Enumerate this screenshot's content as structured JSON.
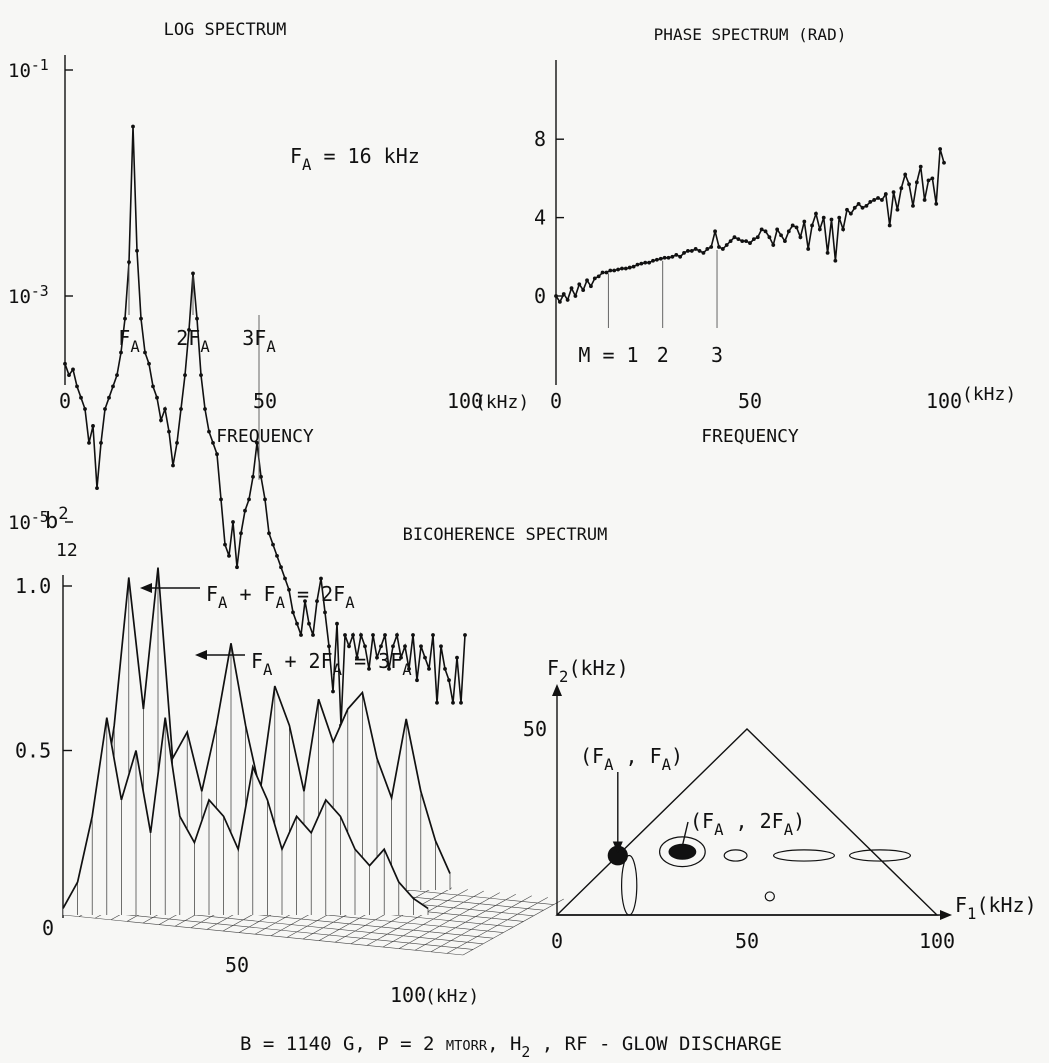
{
  "chart_data": [
    {
      "type": "line",
      "title": "LOG SPECTRUM",
      "xlabel": "FREQUENCY",
      "x_unit": "(kHz)",
      "y_scale": "log",
      "xlim": [
        0,
        100
      ],
      "ylim_exponent": [
        -7,
        -1
      ],
      "x_ticks": [
        "0",
        "50",
        "100"
      ],
      "y_ticks": [
        {
          "base": "10",
          "exp": "-1"
        },
        {
          "base": "10",
          "exp": "-3"
        },
        {
          "base": "10",
          "exp": "-5"
        }
      ],
      "annotation": {
        "text": "F",
        "sub": "A",
        "rest": " = 16 kHz"
      },
      "harmonic_labels": [
        {
          "x": 16,
          "pre": "F",
          "sub": "A"
        },
        {
          "x": 32,
          "pre": "2F",
          "sub": "A"
        },
        {
          "x": 48.5,
          "pre": "3F",
          "sub": "A"
        }
      ],
      "series": [
        {
          "x": [
            0,
            1,
            2,
            3,
            4,
            5,
            6,
            7,
            8,
            9,
            10,
            11,
            12,
            13,
            14,
            15,
            16,
            17,
            18,
            19,
            20,
            21,
            22,
            23,
            24,
            25,
            26,
            27,
            28,
            29,
            30,
            31,
            32,
            33,
            34,
            35,
            36,
            37,
            38,
            39,
            40,
            41,
            42,
            43,
            44,
            45,
            46,
            47,
            48,
            49,
            50,
            51,
            52,
            53,
            54,
            55,
            56,
            57,
            58,
            59,
            60,
            61,
            62,
            63,
            64,
            65,
            66,
            67,
            68,
            69,
            70,
            71,
            72,
            73,
            74,
            75,
            76,
            77,
            78,
            79,
            80,
            81,
            82,
            83,
            84,
            85,
            86,
            87,
            88,
            89,
            90,
            91,
            92,
            93,
            94,
            95,
            96,
            97,
            98,
            99,
            100
          ],
          "y_log10": [
            -3.6,
            -3.7,
            -3.65,
            -3.8,
            -3.9,
            -4.0,
            -4.3,
            -4.15,
            -4.7,
            -4.3,
            -4.0,
            -3.9,
            -3.8,
            -3.7,
            -3.5,
            -3.2,
            -2.7,
            -1.5,
            -2.6,
            -3.2,
            -3.5,
            -3.6,
            -3.8,
            -3.9,
            -4.1,
            -4.0,
            -4.2,
            -4.5,
            -4.3,
            -4.0,
            -3.7,
            -3.3,
            -2.8,
            -3.2,
            -3.7,
            -4.0,
            -4.2,
            -4.3,
            -4.4,
            -4.8,
            -5.2,
            -5.3,
            -5.0,
            -5.4,
            -5.1,
            -4.9,
            -4.8,
            -4.6,
            -4.3,
            -4.6,
            -4.8,
            -5.1,
            -5.2,
            -5.3,
            -5.4,
            -5.5,
            -5.6,
            -5.8,
            -5.9,
            -6.0,
            -5.7,
            -5.9,
            -6.0,
            -5.7,
            -5.5,
            -5.8,
            -6.1,
            -6.5,
            -5.9,
            -6.8,
            -6.0,
            -6.1,
            -6.0,
            -6.2,
            -6.0,
            -6.1,
            -6.3,
            -6.0,
            -6.2,
            -6.1,
            -6.0,
            -6.3,
            -6.1,
            -6.0,
            -6.2,
            -6.1,
            -6.3,
            -6.0,
            -6.4,
            -6.1,
            -6.2,
            -6.3,
            -6.0,
            -6.6,
            -6.1,
            -6.3,
            -6.4,
            -6.6,
            -6.2,
            -6.6,
            -6.0
          ]
        }
      ]
    },
    {
      "type": "line",
      "title": "PHASE SPECTRUM (RAD)",
      "xlabel": "FREQUENCY",
      "x_unit": "(kHz)",
      "xlim": [
        0,
        100
      ],
      "ylim": [
        -1.5,
        11
      ],
      "x_ticks": [
        "0",
        "50",
        "100"
      ],
      "y_ticks": [
        "0",
        "4",
        "8"
      ],
      "mode_labels": [
        {
          "x": 13.5,
          "text": "M = 1"
        },
        {
          "x": 27.5,
          "text": "2"
        },
        {
          "x": 41.5,
          "text": "3"
        }
      ],
      "series": [
        {
          "x": [
            0,
            1,
            2,
            3,
            4,
            5,
            6,
            7,
            8,
            9,
            10,
            11,
            12,
            13,
            14,
            15,
            16,
            17,
            18,
            19,
            20,
            21,
            22,
            23,
            24,
            25,
            26,
            27,
            28,
            29,
            30,
            31,
            32,
            33,
            34,
            35,
            36,
            37,
            38,
            39,
            40,
            41,
            42,
            43,
            44,
            45,
            46,
            47,
            48,
            49,
            50,
            51,
            52,
            53,
            54,
            55,
            56,
            57,
            58,
            59,
            60,
            61,
            62,
            63,
            64,
            65,
            66,
            67,
            68,
            69,
            70,
            71,
            72,
            73,
            74,
            75,
            76,
            77,
            78,
            79,
            80,
            81,
            82,
            83,
            84,
            85,
            86,
            87,
            88,
            89,
            90,
            91,
            92,
            93,
            94,
            95,
            96,
            97,
            98,
            99,
            100
          ],
          "y": [
            0.0,
            -0.3,
            0.1,
            -0.2,
            0.4,
            0.0,
            0.6,
            0.3,
            0.8,
            0.5,
            0.9,
            1.0,
            1.2,
            1.2,
            1.3,
            1.3,
            1.35,
            1.4,
            1.4,
            1.45,
            1.5,
            1.6,
            1.65,
            1.7,
            1.7,
            1.8,
            1.85,
            1.9,
            1.95,
            1.95,
            2.0,
            2.1,
            2.0,
            2.2,
            2.3,
            2.3,
            2.4,
            2.3,
            2.2,
            2.4,
            2.5,
            3.3,
            2.5,
            2.4,
            2.6,
            2.8,
            3.0,
            2.9,
            2.8,
            2.8,
            2.7,
            2.9,
            3.0,
            3.4,
            3.3,
            3.0,
            2.6,
            3.4,
            3.1,
            2.8,
            3.3,
            3.6,
            3.5,
            3.0,
            3.8,
            2.4,
            3.6,
            4.2,
            3.4,
            4.0,
            2.2,
            3.9,
            1.8,
            4.0,
            3.4,
            4.4,
            4.2,
            4.5,
            4.7,
            4.5,
            4.6,
            4.8,
            4.9,
            5.0,
            4.9,
            5.2,
            3.6,
            5.3,
            4.4,
            5.5,
            6.2,
            5.7,
            4.6,
            5.8,
            6.6,
            4.9,
            5.9,
            6.0,
            4.7,
            7.5,
            6.8
          ]
        }
      ]
    },
    {
      "type": "area",
      "title": "BICOHERENCE SPECTRUM",
      "ylabel": {
        "base": "b",
        "sup": "2",
        "sub": "12"
      },
      "x_unit": "(kHz)",
      "ylim": [
        0,
        1.0
      ],
      "xlim": [
        0,
        100
      ],
      "x_ticks": [
        "50",
        "100"
      ],
      "y_ticks": [
        "0",
        "0.5",
        "1.0"
      ],
      "annotations": [
        {
          "parts": [
            [
              "F",
              ""
            ],
            [
              "A",
              "sub"
            ],
            [
              " + F",
              ""
            ],
            [
              "A",
              "sub"
            ],
            [
              " = 2F",
              ""
            ],
            [
              "A",
              "sub"
            ]
          ]
        },
        {
          "parts": [
            [
              "F",
              ""
            ],
            [
              "A",
              "sub"
            ],
            [
              " + 2F",
              ""
            ],
            [
              "A",
              "sub"
            ],
            [
              " = 3F",
              ""
            ],
            [
              "A",
              "sub"
            ]
          ]
        }
      ],
      "ridges": [
        {
          "x": [
            0,
            4,
            8,
            12,
            16,
            20,
            24,
            28,
            32,
            36,
            40,
            44,
            48,
            52,
            56,
            60,
            64,
            68,
            72,
            76,
            80,
            84,
            88,
            92,
            96,
            100
          ],
          "y": [
            0.05,
            0.2,
            0.5,
            0.95,
            0.55,
            0.98,
            0.4,
            0.48,
            0.3,
            0.5,
            0.75,
            0.5,
            0.3,
            0.62,
            0.5,
            0.3,
            0.58,
            0.45,
            0.55,
            0.6,
            0.4,
            0.28,
            0.52,
            0.3,
            0.15,
            0.05
          ]
        },
        {
          "x": [
            0,
            4,
            8,
            12,
            16,
            20,
            24,
            28,
            32,
            36,
            40,
            44,
            48,
            52,
            56,
            60,
            64,
            68,
            72,
            76,
            80,
            84,
            88,
            92,
            96,
            100
          ],
          "y": [
            0.02,
            0.1,
            0.3,
            0.6,
            0.35,
            0.5,
            0.25,
            0.6,
            0.3,
            0.22,
            0.35,
            0.3,
            0.2,
            0.45,
            0.35,
            0.2,
            0.3,
            0.25,
            0.35,
            0.3,
            0.2,
            0.15,
            0.2,
            0.1,
            0.05,
            0.02
          ]
        }
      ]
    },
    {
      "type": "contour",
      "x_axis_label": {
        "base": "F",
        "sub": "1",
        "unit": "(kHz)"
      },
      "y_axis_label": {
        "base": "F",
        "sub": "2",
        "unit": "(kHz)"
      },
      "x_ticks": [
        "0",
        "50",
        "100"
      ],
      "y_ticks": [
        "50"
      ],
      "xlim": [
        0,
        105
      ],
      "ylim": [
        0,
        52
      ],
      "domain_triangle": [
        [
          0,
          0
        ],
        [
          50,
          50
        ],
        [
          100,
          0
        ]
      ],
      "labels": [
        {
          "parts": [
            [
              "(F",
              ""
            ],
            [
              "A",
              "sub"
            ],
            [
              "  ,  F",
              ""
            ],
            [
              "A",
              "sub"
            ],
            [
              ")",
              ""
            ]
          ]
        },
        {
          "parts": [
            [
              "(F",
              ""
            ],
            [
              "A",
              "sub"
            ],
            [
              "  ,  2F",
              ""
            ],
            [
              "A",
              "sub"
            ],
            [
              ")",
              ""
            ]
          ]
        }
      ],
      "contours": [
        {
          "cx": 16,
          "cy": 16,
          "rx": 2.5,
          "ry": 2.5,
          "filled": true
        },
        {
          "cx": 33,
          "cy": 17,
          "rx": 3.5,
          "ry": 2,
          "filled": true
        },
        {
          "cx": 33,
          "cy": 17,
          "rx": 6,
          "ry": 4,
          "filled": false
        },
        {
          "cx": 47,
          "cy": 16,
          "rx": 3,
          "ry": 1.5,
          "filled": false
        },
        {
          "cx": 65,
          "cy": 16,
          "rx": 8,
          "ry": 1.5,
          "filled": false
        },
        {
          "cx": 85,
          "cy": 16,
          "rx": 8,
          "ry": 1.5,
          "filled": false
        },
        {
          "cx": 56,
          "cy": 5,
          "rx": 1.2,
          "ry": 1.2,
          "filled": false
        },
        {
          "cx": 19,
          "cy": 8,
          "rx": 2,
          "ry": 8,
          "filled": false
        }
      ]
    }
  ],
  "caption": {
    "parts": [
      [
        "B = 1140 G, P = 2 ",
        ""
      ],
      [
        "MTORR",
        "smallcaps"
      ],
      [
        ", H",
        ""
      ],
      [
        "2",
        "sub"
      ],
      [
        " ,   RF - GLOW DISCHARGE",
        ""
      ]
    ]
  }
}
